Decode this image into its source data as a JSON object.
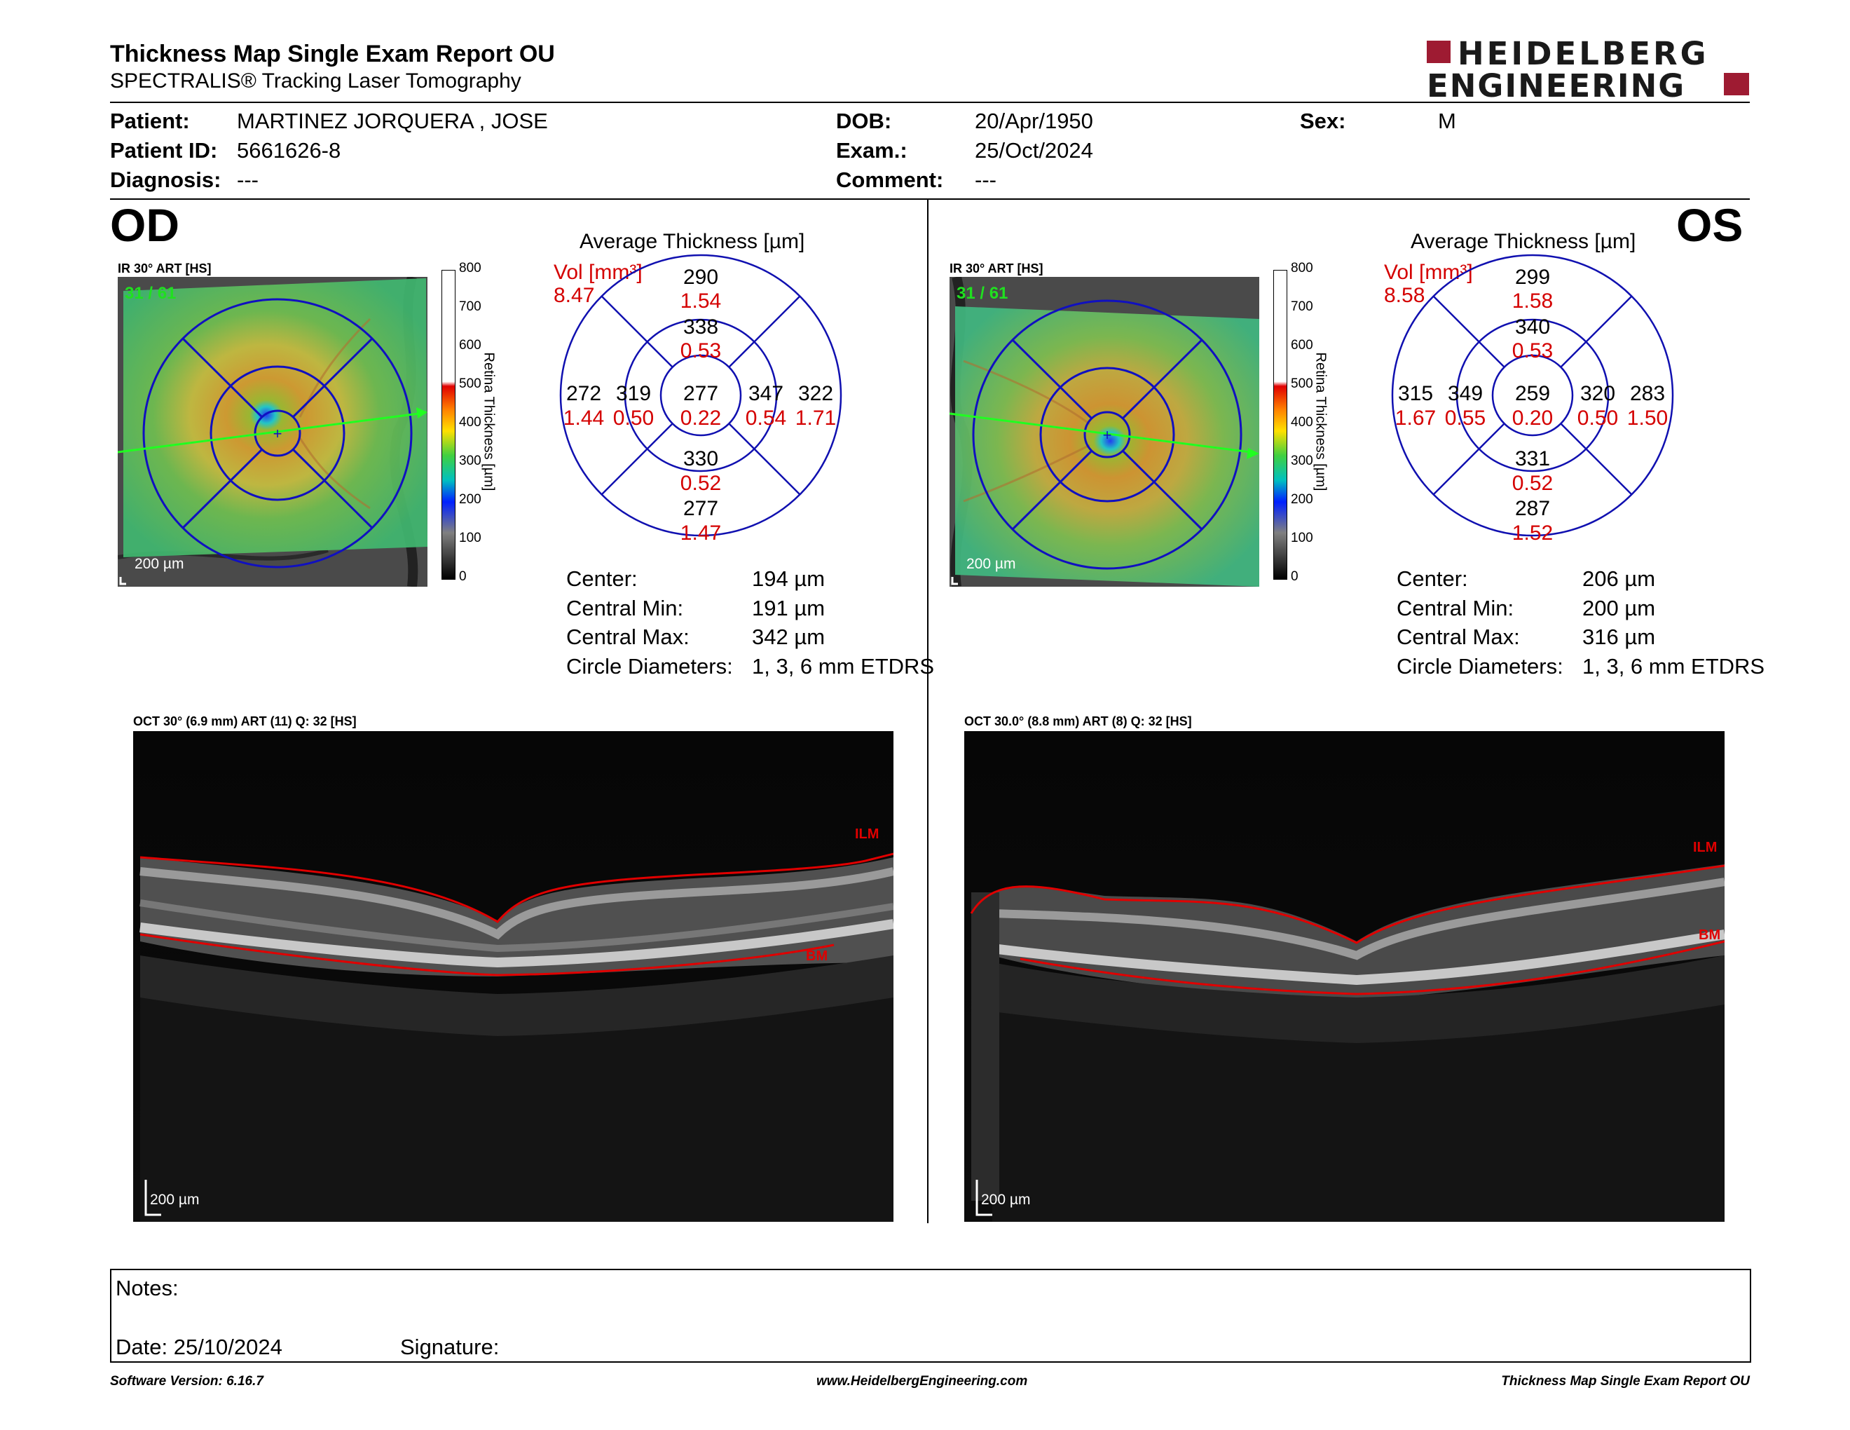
{
  "header": {
    "title": "Thickness Map Single Exam Report OU",
    "subtitle": "SPECTRALIS® Tracking Laser Tomography",
    "logo_line1": "HEIDELBERG",
    "logo_line2": "ENGINEERING",
    "brand_color": "#9e1b32"
  },
  "patient": {
    "patient_label": "Patient:",
    "patient_value": "MARTINEZ JORQUERA , JOSE",
    "id_label": "Patient ID:",
    "id_value": "5661626-8",
    "diag_label": "Diagnosis:",
    "diag_value": "---",
    "dob_label": "DOB:",
    "dob_value": "20/Apr/1950",
    "exam_label": "Exam.:",
    "exam_value": "25/Oct/2024",
    "comment_label": "Comment:",
    "comment_value": "---",
    "sex_label": "Sex:",
    "sex_value": "M"
  },
  "scale": {
    "ticks": [
      "800",
      "700",
      "600",
      "500",
      "400",
      "300",
      "200",
      "100",
      "0"
    ],
    "label": "Retina  Thickness [µm]"
  },
  "od": {
    "eye": "OD",
    "ir_title": "IR 30° ART [HS]",
    "ir_counter": "31 / 61",
    "ir_scalebar": "200 µm",
    "avg_title": "Average Thickness [µm]",
    "vol_label": "Vol [mm³]",
    "vol_value": "8.47",
    "sectors": {
      "outer_sup": {
        "t": "290",
        "v": "1.54"
      },
      "inner_sup": {
        "t": "338",
        "v": "0.53"
      },
      "outer_temp": {
        "t": "272",
        "v": "1.44"
      },
      "inner_temp": {
        "t": "319",
        "v": "0.50"
      },
      "center": {
        "t": "277",
        "v": "0.22"
      },
      "inner_nas": {
        "t": "347",
        "v": "0.54"
      },
      "outer_nas": {
        "t": "322",
        "v": "1.71"
      },
      "inner_inf": {
        "t": "330",
        "v": "0.52"
      },
      "outer_inf": {
        "t": "277",
        "v": "1.47"
      }
    },
    "stats": [
      {
        "label": "Center:",
        "value": "194 µm"
      },
      {
        "label": "Central Min:",
        "value": "191 µm"
      },
      {
        "label": "Central Max:",
        "value": "342 µm"
      },
      {
        "label": "Circle Diameters:",
        "value": "1, 3, 6 mm ETDRS"
      }
    ],
    "oct_title": "OCT 30° (6.9 mm) ART (11) Q: 32 [HS]",
    "oct_ilm": "ILM",
    "oct_bm": "BM",
    "oct_scalebar": "200 µm"
  },
  "os": {
    "eye": "OS",
    "ir_title": "IR 30° ART [HS]",
    "ir_counter": "31 / 61",
    "ir_scalebar": "200 µm",
    "avg_title": "Average Thickness [µm]",
    "vol_label": "Vol [mm³]",
    "vol_value": "8.58",
    "sectors": {
      "outer_sup": {
        "t": "299",
        "v": "1.58"
      },
      "inner_sup": {
        "t": "340",
        "v": "0.53"
      },
      "outer_temp": {
        "t": "283",
        "v": "1.50"
      },
      "inner_temp": {
        "t": "320",
        "v": "0.50"
      },
      "center": {
        "t": "259",
        "v": "0.20"
      },
      "inner_nas": {
        "t": "349",
        "v": "0.55"
      },
      "outer_nas": {
        "t": "315",
        "v": "1.67"
      },
      "inner_inf": {
        "t": "331",
        "v": "0.52"
      },
      "outer_inf": {
        "t": "287",
        "v": "1.52"
      }
    },
    "stats": [
      {
        "label": "Center:",
        "value": "206 µm"
      },
      {
        "label": "Central Min:",
        "value": "200 µm"
      },
      {
        "label": "Central Max:",
        "value": "316 µm"
      },
      {
        "label": "Circle Diameters:",
        "value": "1, 3, 6 mm ETDRS"
      }
    ],
    "oct_title": "OCT 30.0° (8.8 mm) ART (8) Q: 32 [HS]",
    "oct_ilm": "ILM",
    "oct_bm": "BM",
    "oct_scalebar": "200 µm"
  },
  "notes": {
    "notes_label": "Notes:",
    "date_label": "Date: 25/10/2024",
    "signature_label": "Signature:"
  },
  "footer": {
    "software": "Software Version: 6.16.7",
    "website": "www.HeidelbergEngineering.com",
    "report": "Thickness Map Single Exam Report OU"
  }
}
